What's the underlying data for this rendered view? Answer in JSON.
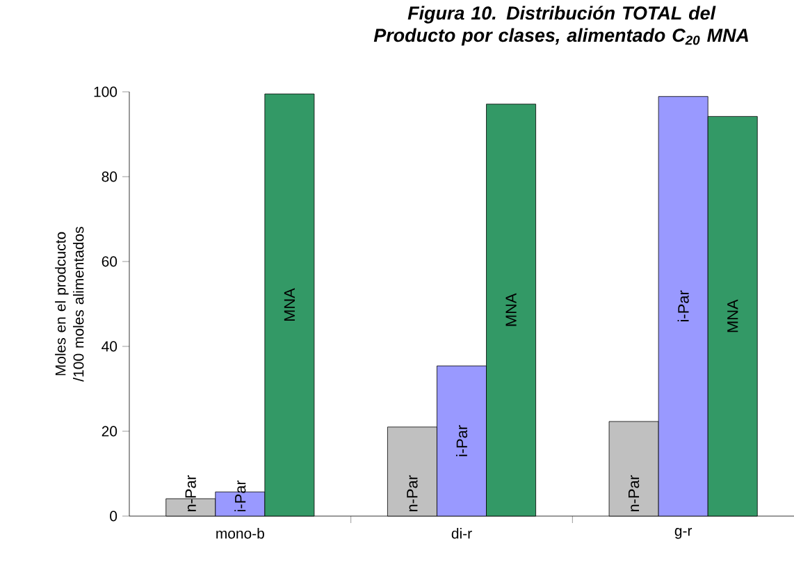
{
  "chart_data": {
    "type": "bar",
    "title": "Figura 10. Distribución TOTAL del Producto por clases, alimentado C$_{20}$ MNA",
    "ylabel": "Moles en el prodcucto /100 moles alimentados",
    "categories": [
      "mono-b",
      "di-r",
      "g-r"
    ],
    "series": [
      {
        "name": "n-Par",
        "color": "#c0c0c0",
        "values": [
          4.1,
          21.0,
          22.3
        ]
      },
      {
        "name": "i-Par",
        "color": "#9999ff",
        "values": [
          5.7,
          35.4,
          98.9
        ]
      },
      {
        "name": "MNA",
        "color": "#339966",
        "values": [
          99.5,
          97.1,
          94.2
        ]
      }
    ],
    "ylim": [
      0,
      100
    ],
    "yticks": [
      0,
      20,
      40,
      60,
      80,
      100
    ],
    "grid": false,
    "legend": false
  }
}
